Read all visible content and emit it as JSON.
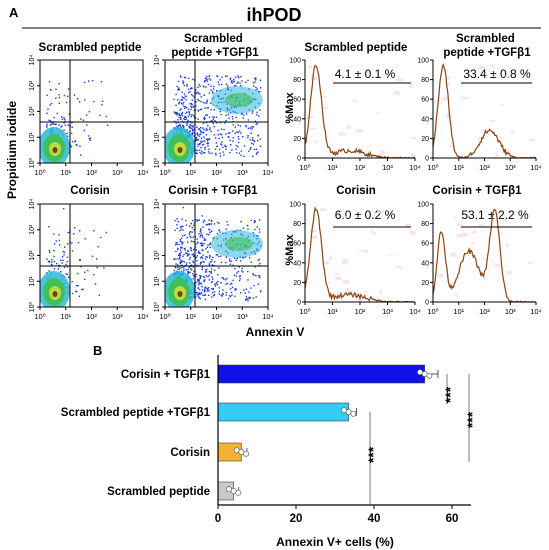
{
  "figure": {
    "title": "ihPOD",
    "panel_a_label": "A",
    "panel_b_label": "B",
    "y_axis_title": "Propidium iodide",
    "x_axis_title": "Annexin V"
  },
  "dot_plots": [
    {
      "title": "Scrambled peptide",
      "level": "low"
    },
    {
      "title": "Scrambled peptide +TGFβ1",
      "level": "high"
    },
    {
      "title": "Corisin",
      "level": "low"
    },
    {
      "title": "Corisin + TGFβ1",
      "level": "high"
    }
  ],
  "histograms": [
    {
      "title": "Scrambled peptide",
      "percent": "4.1 ± 0.1 %",
      "ylabel": "%Max",
      "profile": "single"
    },
    {
      "title": "Scrambled peptide +TGFβ1",
      "percent": "33.4 ± 0.8 %",
      "ylabel": "",
      "profile": "bimodal-low"
    },
    {
      "title": "Corisin",
      "percent": "6.0 ± 0.2 %",
      "ylabel": "%Max",
      "profile": "single"
    },
    {
      "title": "Corisin + TGFβ1",
      "percent": "53.1 ± 2.2 %",
      "ylabel": "",
      "profile": "bimodal-high"
    }
  ],
  "axis_ticks": {
    "log_x": [
      "10⁰",
      "10¹",
      "10²",
      "10³",
      "10⁴"
    ],
    "log_y": [
      "10⁰",
      "10¹",
      "10²",
      "10³",
      "10⁴"
    ],
    "hist_y": [
      "0",
      "20",
      "40",
      "60",
      "80",
      "100"
    ]
  },
  "colors": {
    "histogram_line": "#8b4513",
    "histogram_fill": "#f7d9ee",
    "bar_corisin_tgf": "#1010e8",
    "bar_scrambled_tgf": "#33ccf2",
    "bar_corisin": "#f2b233",
    "bar_scrambled": "#c8c8c8"
  },
  "chart_data": {
    "type": "bar",
    "orientation": "horizontal",
    "categories": [
      "Corisin + TGFβ1",
      "Scrambled peptide +TGFβ1",
      "Corisin",
      "Scrambled peptide"
    ],
    "values": [
      53,
      33.5,
      6,
      4
    ],
    "errors": [
      2.2,
      0.8,
      0.2,
      0.1
    ],
    "xlabel": "Annexin V+ cells (%)",
    "xlim": [
      0,
      70
    ],
    "xticks": [
      0,
      20,
      40,
      60
    ],
    "significance": [
      {
        "label": "***",
        "from": "Corisin + TGFβ1",
        "to": "Scrambled peptide +TGFβ1"
      },
      {
        "label": "***",
        "from": "Corisin + TGFβ1",
        "to": "Corisin"
      },
      {
        "label": "***",
        "from": "Scrambled peptide +TGFβ1",
        "to": "Scrambled peptide"
      }
    ]
  }
}
